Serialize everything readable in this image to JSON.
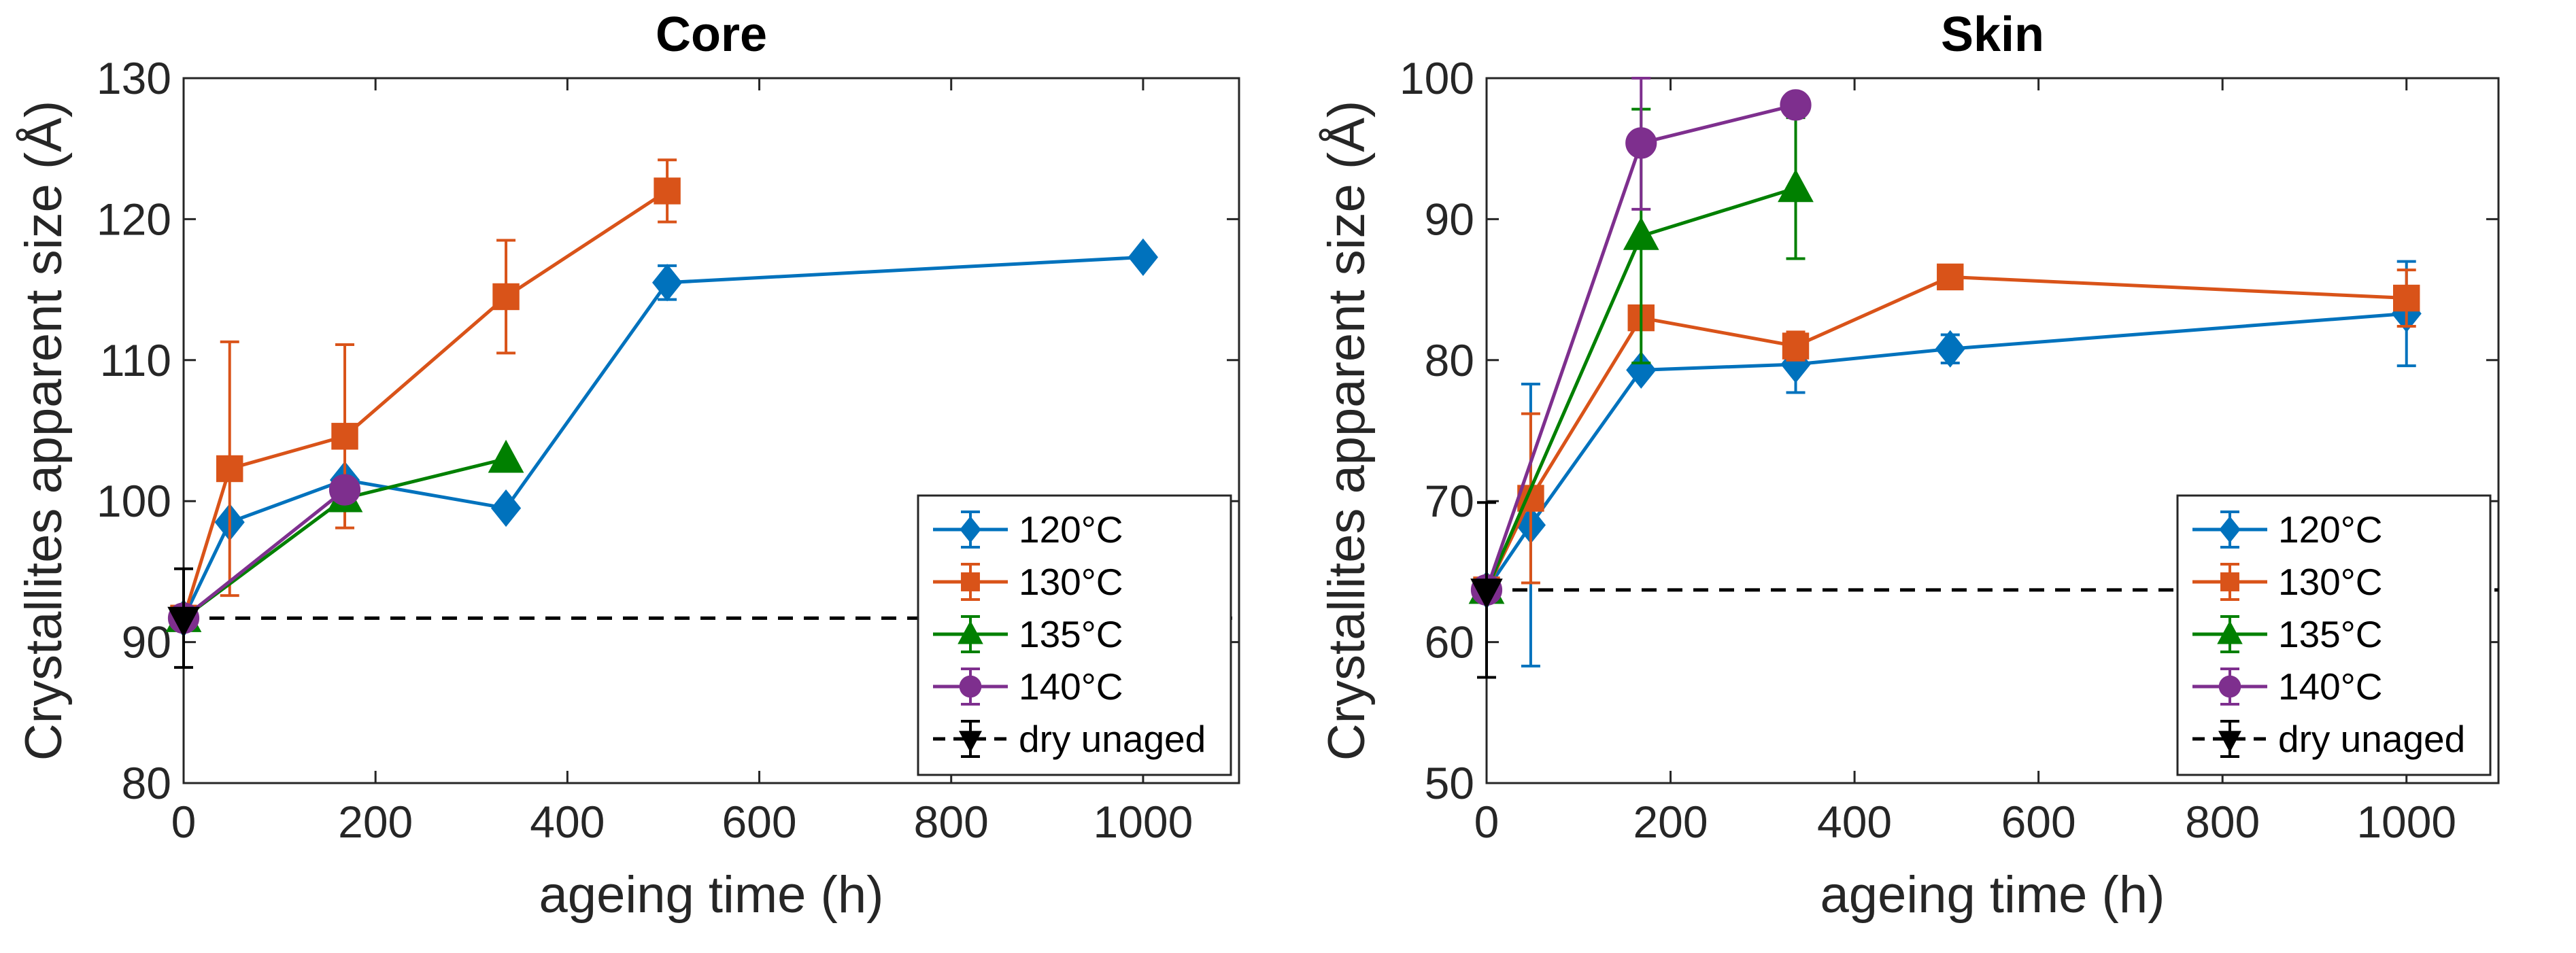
{
  "chart_data": [
    {
      "type": "line",
      "title": "Core",
      "xlabel": "ageing time (h)",
      "ylabel": "Crystallites apparent size (Å)",
      "xlim": [
        0,
        1100
      ],
      "ylim": [
        80,
        130
      ],
      "xticks": [
        0,
        200,
        400,
        600,
        800,
        1000
      ],
      "yticks": [
        80,
        90,
        100,
        110,
        120,
        130
      ],
      "legend_position": "bottom-right",
      "series": [
        {
          "name": "120°C",
          "color": "#0072BD",
          "marker": "diamond",
          "x": [
            0,
            48,
            168,
            336,
            504,
            1000
          ],
          "y": [
            91.7,
            98.5,
            101.5,
            99.5,
            115.5,
            117.3
          ],
          "err": [
            0,
            0,
            0,
            0,
            1.2,
            0
          ]
        },
        {
          "name": "130°C",
          "color": "#D95319",
          "marker": "square",
          "x": [
            0,
            48,
            168,
            336,
            504
          ],
          "y": [
            91.7,
            102.3,
            104.6,
            114.5,
            122
          ],
          "err": [
            0,
            9,
            6.5,
            4,
            2.2
          ]
        },
        {
          "name": "135°C",
          "color": "#008000",
          "marker": "triangle",
          "x": [
            0,
            168,
            336
          ],
          "y": [
            91.7,
            100.2,
            103
          ],
          "err": [
            0,
            0,
            0
          ]
        },
        {
          "name": "140°C",
          "color": "#7E2F8E",
          "marker": "circle",
          "x": [
            0,
            168
          ],
          "y": [
            91.7,
            100.8
          ],
          "err": [
            0,
            0
          ]
        },
        {
          "name": "dry unaged",
          "color": "#000000",
          "marker": "triangle-down",
          "dashed": true,
          "x": [
            0
          ],
          "y": [
            91.7
          ],
          "err": [
            3.5
          ],
          "reference_line": 91.7
        }
      ]
    },
    {
      "type": "line",
      "title": "Skin",
      "xlabel": "ageing time (h)",
      "ylabel": "Crystallites apparent size (Å)",
      "xlim": [
        0,
        1100
      ],
      "ylim": [
        50,
        100
      ],
      "xticks": [
        0,
        200,
        400,
        600,
        800,
        1000
      ],
      "yticks": [
        50,
        60,
        70,
        80,
        90,
        100
      ],
      "legend_position": "bottom-right",
      "series": [
        {
          "name": "120°C",
          "color": "#0072BD",
          "marker": "diamond",
          "x": [
            0,
            48,
            168,
            336,
            504,
            1000
          ],
          "y": [
            63.7,
            68.3,
            79.3,
            79.7,
            80.8,
            83.3
          ],
          "err": [
            0,
            10,
            0,
            2,
            1,
            3.7
          ]
        },
        {
          "name": "130°C",
          "color": "#D95319",
          "marker": "square",
          "x": [
            0,
            48,
            168,
            336,
            504,
            1000
          ],
          "y": [
            63.7,
            70.2,
            83,
            81,
            85.9,
            84.4
          ],
          "err": [
            0,
            6,
            0,
            1,
            0.8,
            2
          ]
        },
        {
          "name": "135°C",
          "color": "#008000",
          "marker": "triangle",
          "x": [
            0,
            168,
            336
          ],
          "y": [
            63.7,
            88.8,
            92.2
          ],
          "err": [
            0,
            9,
            5
          ]
        },
        {
          "name": "140°C",
          "color": "#7E2F8E",
          "marker": "circle",
          "x": [
            0,
            168,
            336
          ],
          "y": [
            63.7,
            95.4,
            98.1
          ],
          "err": [
            0,
            4.7,
            0
          ]
        },
        {
          "name": "dry unaged",
          "color": "#000000",
          "marker": "triangle-down",
          "dashed": true,
          "x": [
            0
          ],
          "y": [
            63.7
          ],
          "err": [
            6.2
          ],
          "reference_line": 63.7
        }
      ]
    }
  ]
}
